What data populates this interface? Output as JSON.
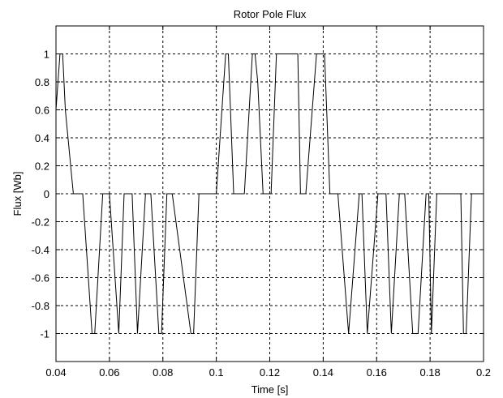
{
  "chart_data": {
    "type": "line",
    "title": "Rotor Pole Flux",
    "xlabel": "Time [s]",
    "ylabel": "Flux [Wb]",
    "xlim": [
      0.04,
      0.2
    ],
    "ylim": [
      -1.2,
      1.2
    ],
    "grid": true,
    "xticks": [
      0.04,
      0.06,
      0.08,
      0.1,
      0.12,
      0.14,
      0.16,
      0.18,
      0.2
    ],
    "xtick_labels": [
      "0.04",
      "0.06",
      "0.08",
      "0.1",
      "0.12",
      "0.14",
      "0.16",
      "0.18",
      "0.2"
    ],
    "yticks": [
      1,
      0.8,
      0.6,
      0.4,
      0.2,
      0,
      -0.2,
      -0.4,
      -0.6,
      -0.8,
      -1
    ],
    "ytick_labels": [
      "1",
      "0.8",
      "0.6",
      "0.4",
      "0.2",
      "0",
      "-0.2",
      "-0.4",
      "-0.6",
      "-0.8",
      "-1"
    ],
    "series": [
      {
        "color": "#000000",
        "x": [
          0.04,
          0.04,
          0.0415,
          0.0425,
          0.0435,
          0.0465,
          0.05,
          0.0535,
          0.0545,
          0.0575,
          0.06,
          0.0635,
          0.0655,
          0.0685,
          0.0705,
          0.0735,
          0.0755,
          0.0785,
          0.0795,
          0.0815,
          0.0835,
          0.0905,
          0.0915,
          0.0935,
          0.1,
          0.1035,
          0.1045,
          0.1065,
          0.1105,
          0.1135,
          0.1145,
          0.1155,
          0.1175,
          0.1205,
          0.1225,
          0.1305,
          0.1315,
          0.1335,
          0.1375,
          0.1405,
          0.1425,
          0.1455,
          0.1495,
          0.1535,
          0.1545,
          0.1565,
          0.1605,
          0.1635,
          0.1655,
          0.1685,
          0.1705,
          0.1735,
          0.1755,
          0.1785,
          0.1795,
          0.1805,
          0.1825,
          0.1915,
          0.1925,
          0.1935,
          0.1955,
          0.2
        ],
        "y": [
          0.6,
          0.6,
          1,
          1,
          0.6,
          0,
          0,
          -1,
          -1,
          0,
          0,
          -1,
          0,
          0,
          -1,
          0,
          0,
          -1,
          -1,
          0,
          0,
          -1,
          -1,
          0,
          0,
          1,
          1,
          0,
          0,
          1,
          1,
          0.8,
          0,
          0,
          1,
          1,
          0,
          0,
          1,
          1,
          0,
          0,
          -1,
          0,
          0,
          -1,
          0,
          0,
          -1,
          0,
          0,
          -1,
          -1,
          0,
          0,
          -1,
          0,
          0,
          -1,
          -1,
          0,
          0
        ]
      }
    ]
  }
}
